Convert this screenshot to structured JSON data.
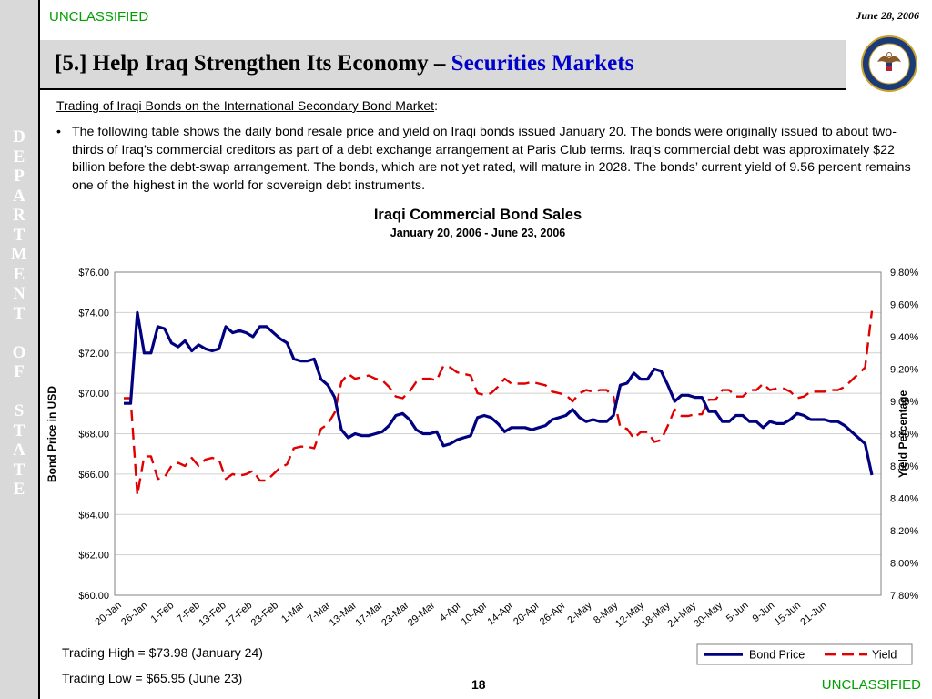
{
  "header": {
    "classification_top": "UNCLASSIFIED",
    "date": "June 28, 2006",
    "title_prefix": "[5.] Help Iraq Strengthen Its Economy – ",
    "title_highlight": "Securities Markets",
    "sidebar_text": "DEPARTMENT OF STATE",
    "seal_text": "DEPARTMENT OF STATE · UNITED STATES OF AMERICA"
  },
  "body": {
    "section_heading": "Trading of Iraqi Bonds on the International Secondary Bond Market",
    "bullet_marker": "•",
    "bullet": "The following table shows the daily bond resale price and yield on Iraqi bonds issued January 20.  The bonds were originally issued to about two-thirds of Iraq’s commercial creditors as part of a debt exchange arrangement at Paris Club terms.  Iraq’s commercial debt was approximately $22 billion before the debt-swap arrangement.  The bonds, which are not yet rated, will mature in 2028.  The bonds’ current yield of 9.56 percent remains one of the highest in the world for sovereign debt instruments."
  },
  "footer": {
    "trading_high": "Trading High = $73.98 (January 24)",
    "trading_low": "Trading Low = $65.95 (June 23)",
    "page_number": "18",
    "classification_bottom": "UNCLASSIFIED"
  },
  "colors": {
    "price_line": "#000080",
    "yield_line": "#e00000",
    "classification": "#00a000",
    "title_accent": "#0000cc"
  },
  "chart_data": {
    "type": "line",
    "title": "Iraqi Commercial Bond Sales",
    "subtitle": "January 20, 2006 - June 23, 2006",
    "ylabel": "Bond Price in USD",
    "y2label": "Yield Percentage",
    "ylim": [
      60,
      76
    ],
    "y2lim": [
      7.8,
      9.8
    ],
    "y_ticks": [
      "$60.00",
      "$62.00",
      "$64.00",
      "$66.00",
      "$68.00",
      "$70.00",
      "$72.00",
      "$74.00",
      "$76.00"
    ],
    "y2_ticks": [
      "7.80%",
      "8.00%",
      "8.20%",
      "8.40%",
      "8.60%",
      "8.80%",
      "9.00%",
      "9.20%",
      "9.40%",
      "9.60%",
      "9.80%"
    ],
    "x_tick_labels": [
      "20-Jan",
      "26-Jan",
      "1-Feb",
      "7-Feb",
      "13-Feb",
      "17-Feb",
      "23-Feb",
      "1-Mar",
      "7-Mar",
      "13-Mar",
      "17-Mar",
      "23-Mar",
      "29-Mar",
      "4-Apr",
      "10-Apr",
      "14-Apr",
      "20-Apr",
      "26-Apr",
      "2-May",
      "8-May",
      "12-May",
      "18-May",
      "24-May",
      "30-May",
      "5-Jun",
      "9-Jun",
      "15-Jun",
      "21-Jun"
    ],
    "grid": "horizontal",
    "legend": "bottom-right",
    "series": [
      {
        "name": "Bond Price",
        "axis": "left",
        "style": "solid",
        "values": [
          69.5,
          69.5,
          74.0,
          72.0,
          72.0,
          73.3,
          73.2,
          72.5,
          72.3,
          72.6,
          72.1,
          72.4,
          72.2,
          72.1,
          72.2,
          73.3,
          73.0,
          73.1,
          73.0,
          72.8,
          73.3,
          73.3,
          73.0,
          72.7,
          72.5,
          71.7,
          71.6,
          71.6,
          71.7,
          70.7,
          70.4,
          69.8,
          68.2,
          67.8,
          68.0,
          67.9,
          67.9,
          68.0,
          68.1,
          68.4,
          68.9,
          69.0,
          68.7,
          68.2,
          68.0,
          68.0,
          68.1,
          67.4,
          67.5,
          67.7,
          67.8,
          67.9,
          68.8,
          68.9,
          68.8,
          68.5,
          68.1,
          68.3,
          68.3,
          68.3,
          68.2,
          68.3,
          68.4,
          68.7,
          68.8,
          68.9,
          69.2,
          68.8,
          68.6,
          68.7,
          68.6,
          68.6,
          68.9,
          70.4,
          70.5,
          71.0,
          70.7,
          70.7,
          71.2,
          71.1,
          70.4,
          69.6,
          69.9,
          69.9,
          69.8,
          69.8,
          69.1,
          69.1,
          68.6,
          68.6,
          68.9,
          68.9,
          68.6,
          68.6,
          68.3,
          68.6,
          68.5,
          68.5,
          68.7,
          69.0,
          68.9,
          68.7,
          68.7,
          68.7,
          68.6,
          68.6,
          68.4,
          68.1,
          67.8,
          67.5,
          65.95
        ]
      },
      {
        "name": "Yield",
        "axis": "right",
        "style": "dashed",
        "values": [
          9.02,
          9.02,
          8.42,
          8.66,
          8.66,
          8.52,
          8.53,
          8.6,
          8.62,
          8.6,
          8.65,
          8.6,
          8.64,
          8.65,
          8.64,
          8.52,
          8.55,
          8.54,
          8.55,
          8.57,
          8.51,
          8.51,
          8.55,
          8.59,
          8.61,
          8.71,
          8.72,
          8.72,
          8.71,
          8.83,
          8.86,
          8.93,
          9.12,
          9.17,
          9.14,
          9.15,
          9.16,
          9.14,
          9.13,
          9.09,
          9.03,
          9.02,
          9.06,
          9.12,
          9.14,
          9.14,
          9.13,
          9.22,
          9.21,
          9.18,
          9.17,
          9.16,
          9.05,
          9.04,
          9.05,
          9.09,
          9.14,
          9.11,
          9.11,
          9.11,
          9.12,
          9.11,
          9.1,
          9.06,
          9.05,
          9.04,
          9.0,
          9.05,
          9.07,
          9.06,
          9.07,
          9.07,
          9.03,
          8.84,
          8.83,
          8.77,
          8.81,
          8.81,
          8.75,
          8.76,
          8.85,
          8.95,
          8.91,
          8.91,
          8.92,
          8.92,
          9.01,
          9.01,
          9.07,
          9.07,
          9.03,
          9.03,
          9.07,
          9.07,
          9.11,
          9.07,
          9.08,
          9.08,
          9.06,
          9.02,
          9.03,
          9.06,
          9.06,
          9.06,
          9.07,
          9.07,
          9.09,
          9.13,
          9.17,
          9.21,
          9.56
        ]
      }
    ]
  }
}
